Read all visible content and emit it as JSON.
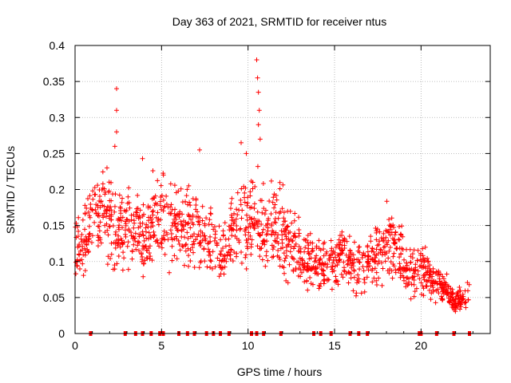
{
  "chart_data": {
    "type": "scatter",
    "title": "Day 363 of 2021, SRMTID for receiver ntus",
    "xlabel": "GPS time / hours",
    "ylabel": "SRMTID / TECUs",
    "xlim": [
      0,
      24
    ],
    "ylim": [
      0,
      0.4
    ],
    "xticks": [
      0,
      5,
      10,
      15,
      20
    ],
    "yticks": [
      0,
      0.05,
      0.1,
      0.15,
      0.2,
      0.25,
      0.3,
      0.35,
      0.4
    ],
    "xtick_labels": [
      "0",
      "5",
      "10",
      "15",
      "20"
    ],
    "ytick_labels": [
      "0",
      "0.05",
      "0.1",
      "0.15",
      "0.2",
      "0.25",
      "0.3",
      "0.35",
      "0.4"
    ],
    "grid": true,
    "marker": "+",
    "color": "#ff0000",
    "envelope": [
      {
        "x": 0.0,
        "y": 0.12
      },
      {
        "x": 0.5,
        "y": 0.13
      },
      {
        "x": 1.0,
        "y": 0.16
      },
      {
        "x": 1.5,
        "y": 0.17
      },
      {
        "x": 2.0,
        "y": 0.16
      },
      {
        "x": 2.5,
        "y": 0.14
      },
      {
        "x": 3.0,
        "y": 0.15
      },
      {
        "x": 3.5,
        "y": 0.14
      },
      {
        "x": 4.0,
        "y": 0.13
      },
      {
        "x": 4.5,
        "y": 0.15
      },
      {
        "x": 5.0,
        "y": 0.16
      },
      {
        "x": 5.5,
        "y": 0.15
      },
      {
        "x": 6.0,
        "y": 0.14
      },
      {
        "x": 6.5,
        "y": 0.15
      },
      {
        "x": 7.0,
        "y": 0.15
      },
      {
        "x": 7.5,
        "y": 0.13
      },
      {
        "x": 8.0,
        "y": 0.12
      },
      {
        "x": 8.5,
        "y": 0.1
      },
      {
        "x": 9.0,
        "y": 0.14
      },
      {
        "x": 9.5,
        "y": 0.15
      },
      {
        "x": 10.0,
        "y": 0.15
      },
      {
        "x": 10.5,
        "y": 0.16
      },
      {
        "x": 11.0,
        "y": 0.14
      },
      {
        "x": 11.5,
        "y": 0.15
      },
      {
        "x": 12.0,
        "y": 0.14
      },
      {
        "x": 12.5,
        "y": 0.13
      },
      {
        "x": 13.0,
        "y": 0.11
      },
      {
        "x": 13.5,
        "y": 0.1
      },
      {
        "x": 14.0,
        "y": 0.09
      },
      {
        "x": 14.5,
        "y": 0.09
      },
      {
        "x": 15.0,
        "y": 0.1
      },
      {
        "x": 15.5,
        "y": 0.12
      },
      {
        "x": 16.0,
        "y": 0.09
      },
      {
        "x": 16.5,
        "y": 0.09
      },
      {
        "x": 17.0,
        "y": 0.1
      },
      {
        "x": 17.5,
        "y": 0.11
      },
      {
        "x": 18.0,
        "y": 0.13
      },
      {
        "x": 18.5,
        "y": 0.12
      },
      {
        "x": 19.0,
        "y": 0.1
      },
      {
        "x": 19.5,
        "y": 0.09
      },
      {
        "x": 20.0,
        "y": 0.09
      },
      {
        "x": 20.5,
        "y": 0.08
      },
      {
        "x": 21.0,
        "y": 0.07
      },
      {
        "x": 21.5,
        "y": 0.06
      },
      {
        "x": 22.0,
        "y": 0.04
      },
      {
        "x": 22.5,
        "y": 0.05
      },
      {
        "x": 22.8,
        "y": 0.06
      }
    ],
    "spikes": [
      {
        "x": 2.4,
        "y": 0.34
      },
      {
        "x": 2.4,
        "y": 0.31
      },
      {
        "x": 2.4,
        "y": 0.28
      },
      {
        "x": 2.3,
        "y": 0.26
      },
      {
        "x": 10.5,
        "y": 0.38
      },
      {
        "x": 10.55,
        "y": 0.355
      },
      {
        "x": 10.6,
        "y": 0.335
      },
      {
        "x": 10.65,
        "y": 0.31
      },
      {
        "x": 10.6,
        "y": 0.29
      },
      {
        "x": 10.7,
        "y": 0.27
      },
      {
        "x": 7.2,
        "y": 0.255
      },
      {
        "x": 9.6,
        "y": 0.265
      },
      {
        "x": 9.9,
        "y": 0.25
      },
      {
        "x": 3.9,
        "y": 0.243
      },
      {
        "x": 4.5,
        "y": 0.226
      }
    ],
    "baseline_markers": [
      0.9,
      2.9,
      3.5,
      3.9,
      4.4,
      4.9,
      5.1,
      6.0,
      6.5,
      6.9,
      7.6,
      8.0,
      8.4,
      8.9,
      10.2,
      10.5,
      10.9,
      11.9,
      13.8,
      14.2,
      14.8,
      15.9,
      16.4,
      16.9,
      19.9,
      20.0,
      20.9,
      21.9,
      22.8
    ]
  }
}
